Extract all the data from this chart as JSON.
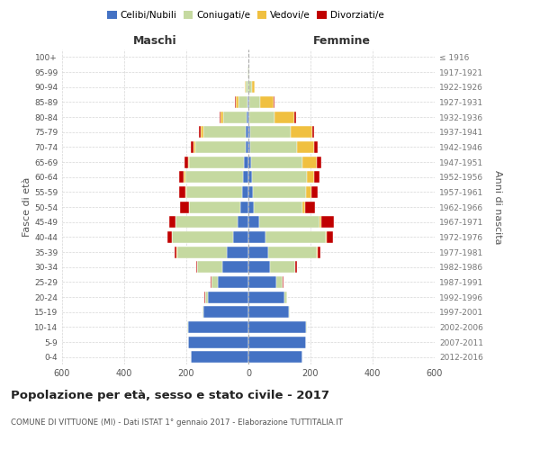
{
  "age_groups": [
    "0-4",
    "5-9",
    "10-14",
    "15-19",
    "20-24",
    "25-29",
    "30-34",
    "35-39",
    "40-44",
    "45-49",
    "50-54",
    "55-59",
    "60-64",
    "65-69",
    "70-74",
    "75-79",
    "80-84",
    "85-89",
    "90-94",
    "95-99",
    "100+"
  ],
  "birth_years": [
    "2012-2016",
    "2007-2011",
    "2002-2006",
    "1997-2001",
    "1992-1996",
    "1987-1991",
    "1982-1986",
    "1977-1981",
    "1972-1976",
    "1967-1971",
    "1962-1966",
    "1957-1961",
    "1952-1956",
    "1947-1951",
    "1942-1946",
    "1937-1941",
    "1932-1936",
    "1927-1931",
    "1922-1926",
    "1917-1921",
    "≤ 1916"
  ],
  "male": {
    "celibi": [
      185,
      195,
      195,
      145,
      130,
      100,
      85,
      70,
      50,
      35,
      25,
      20,
      18,
      15,
      10,
      10,
      5,
      2,
      1,
      0,
      0
    ],
    "coniugati": [
      0,
      0,
      2,
      2,
      10,
      20,
      80,
      160,
      195,
      200,
      165,
      180,
      185,
      175,
      160,
      135,
      75,
      30,
      8,
      2,
      0
    ],
    "vedovi": [
      0,
      0,
      0,
      0,
      0,
      0,
      0,
      1,
      1,
      1,
      2,
      3,
      5,
      5,
      8,
      10,
      10,
      10,
      2,
      0,
      0
    ],
    "divorziati": [
      0,
      0,
      0,
      0,
      1,
      2,
      3,
      8,
      15,
      20,
      28,
      20,
      15,
      10,
      8,
      5,
      3,
      2,
      0,
      0,
      0
    ]
  },
  "female": {
    "nubili": [
      175,
      185,
      185,
      130,
      115,
      90,
      70,
      65,
      55,
      35,
      18,
      15,
      12,
      10,
      6,
      5,
      4,
      2,
      1,
      0,
      0
    ],
    "coniugate": [
      0,
      0,
      2,
      3,
      10,
      20,
      80,
      155,
      195,
      195,
      155,
      170,
      175,
      165,
      150,
      130,
      80,
      35,
      10,
      2,
      0
    ],
    "vedove": [
      0,
      0,
      0,
      0,
      0,
      1,
      1,
      2,
      3,
      5,
      10,
      18,
      25,
      45,
      55,
      70,
      65,
      45,
      10,
      2,
      0
    ],
    "divorziate": [
      0,
      0,
      0,
      0,
      1,
      2,
      5,
      10,
      20,
      40,
      32,
      20,
      18,
      15,
      12,
      8,
      5,
      2,
      0,
      0,
      0
    ]
  },
  "colors": {
    "celibi_nubili": "#4472C4",
    "coniugati": "#C5D9A0",
    "vedovi": "#F0C040",
    "divorziati": "#C00000"
  },
  "xlim": 600,
  "title": "Popolazione per età, sesso e stato civile - 2017",
  "subtitle": "COMUNE DI VITTUONE (MI) - Dati ISTAT 1° gennaio 2017 - Elaborazione TUTTITALIA.IT",
  "ylabel_left": "Fasce di età",
  "ylabel_right": "Anni di nascita",
  "xlabel_left": "Maschi",
  "xlabel_right": "Femmine",
  "background_color": "#FFFFFF",
  "grid_color": "#CCCCCC"
}
